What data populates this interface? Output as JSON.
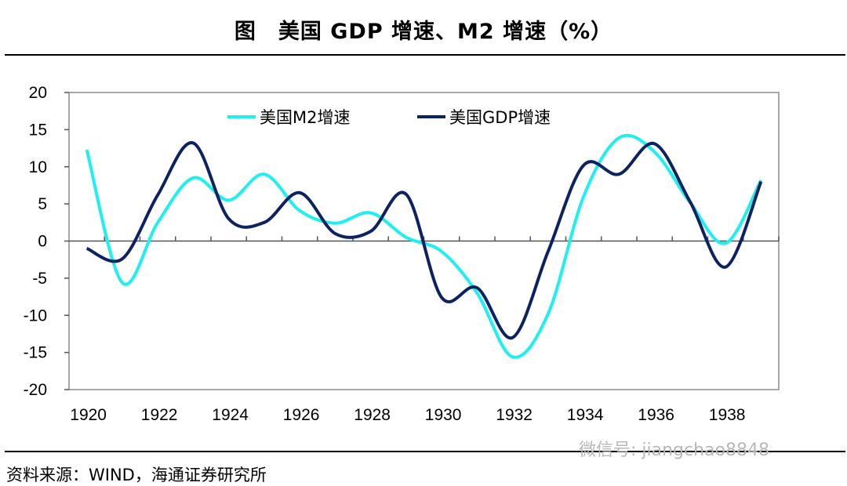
{
  "header": {
    "title": "图　美国 GDP 增速、M2 增速（%）"
  },
  "footer": {
    "source": "资料来源：WIND，海通证券研究所",
    "watermark": "微信号: jiangchao8848"
  },
  "chart_data": {
    "type": "line",
    "title": "图　美国 GDP 增速、M2 增速（%）",
    "xlabel": "",
    "ylabel": "",
    "categories": [
      1920,
      1921,
      1922,
      1923,
      1924,
      1925,
      1926,
      1927,
      1928,
      1929,
      1930,
      1931,
      1932,
      1933,
      1934,
      1935,
      1936,
      1937,
      1938,
      1939
    ],
    "x_tick_labels": [
      "1920",
      "1922",
      "1924",
      "1926",
      "1928",
      "1930",
      "1932",
      "1934",
      "1936",
      "1938"
    ],
    "y_tick_labels": [
      "20",
      "15",
      "10",
      "5",
      "0",
      "-5",
      "-10",
      "-15",
      "-20"
    ],
    "ylim": [
      -20,
      20
    ],
    "grid": false,
    "legend_position": "top",
    "series": [
      {
        "name": "美国M2增速",
        "color": "#1EF0F0",
        "values": [
          12.3,
          -5.6,
          2.5,
          8.5,
          5.5,
          9.0,
          4.1,
          2.4,
          3.8,
          0.5,
          -1.4,
          -7.0,
          -15.6,
          -9.8,
          6.0,
          13.9,
          12.0,
          5.2,
          -0.3,
          8.2
        ]
      },
      {
        "name": "美国GDP增速",
        "color": "#0D2260",
        "values": [
          -1.0,
          -2.4,
          6.2,
          13.2,
          3.0,
          2.5,
          6.5,
          1.0,
          1.3,
          6.3,
          -7.6,
          -6.3,
          -13.0,
          -1.4,
          10.2,
          9.0,
          13.1,
          5.3,
          -3.5,
          8.0
        ]
      }
    ]
  }
}
